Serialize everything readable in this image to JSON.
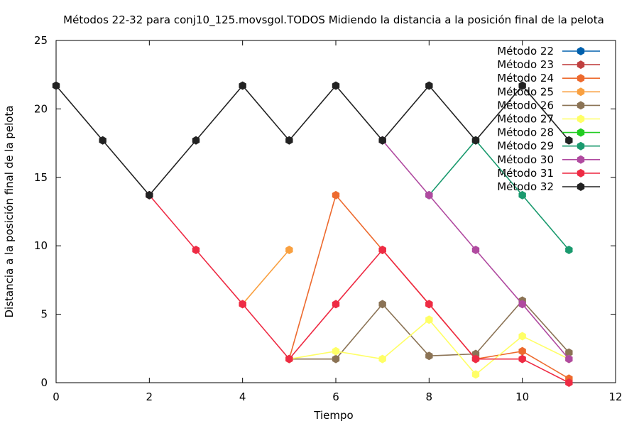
{
  "chart_data": {
    "type": "line",
    "title": "Métodos 22-32 para conj10_125.movsgol.TODOS Midiendo la distancia a la posición final de la pelota",
    "xlabel": "Tiempo",
    "ylabel": "Distancia a la posición final de la pelota",
    "xlim": [
      0,
      12
    ],
    "ylim": [
      0,
      25
    ],
    "xticks": [
      0,
      2,
      4,
      6,
      8,
      10,
      12
    ],
    "yticks": [
      0,
      5,
      10,
      15,
      20,
      25
    ],
    "grid": false,
    "legend_position": "top-right",
    "series": [
      {
        "name": "Método 22",
        "color": "#0060ad",
        "x": [],
        "y": []
      },
      {
        "name": "Método 23",
        "color": "#c04040",
        "x": [],
        "y": []
      },
      {
        "name": "Método 24",
        "color": "#ed6a2e",
        "x": [
          5,
          6,
          7,
          8,
          9,
          10,
          11
        ],
        "y": [
          1.73,
          13.7,
          9.7,
          5.74,
          1.73,
          2.3,
          0.3
        ]
      },
      {
        "name": "Método 25",
        "color": "#f9a040",
        "x": [
          4,
          5
        ],
        "y": [
          5.74,
          9.7
        ]
      },
      {
        "name": "Método 26",
        "color": "#8b7355",
        "x": [
          5,
          6,
          7,
          8,
          9,
          10,
          11
        ],
        "y": [
          1.73,
          1.73,
          5.74,
          1.96,
          2.1,
          6.0,
          2.2
        ]
      },
      {
        "name": "Método 27",
        "color": "#ffff66",
        "x": [
          5,
          6,
          7,
          8,
          9,
          10,
          11
        ],
        "y": [
          1.73,
          2.3,
          1.73,
          4.6,
          0.6,
          3.4,
          1.73
        ]
      },
      {
        "name": "Método 28",
        "color": "#22cc22",
        "x": [],
        "y": []
      },
      {
        "name": "Método 29",
        "color": "#1a9a6e",
        "x": [
          8,
          9,
          10,
          11
        ],
        "y": [
          13.7,
          17.7,
          13.7,
          9.7
        ]
      },
      {
        "name": "Método 30",
        "color": "#b04aa0",
        "x": [
          7,
          8,
          9,
          10,
          11
        ],
        "y": [
          17.7,
          13.7,
          9.7,
          5.74,
          1.73
        ]
      },
      {
        "name": "Método 31",
        "color": "#ee2b44",
        "x": [
          2,
          3,
          4,
          5,
          6,
          7,
          8,
          9,
          10,
          11
        ],
        "y": [
          13.7,
          9.7,
          5.74,
          1.73,
          5.74,
          9.7,
          5.74,
          1.73,
          1.73,
          0.0
        ]
      },
      {
        "name": "Método 32",
        "color": "#222222",
        "x": [
          0,
          1,
          2,
          3,
          4,
          5,
          6,
          7,
          8,
          9,
          10,
          11
        ],
        "y": [
          21.7,
          17.7,
          13.7,
          17.7,
          21.7,
          17.7,
          21.7,
          17.7,
          21.7,
          17.7,
          21.7,
          17.7
        ]
      }
    ]
  }
}
